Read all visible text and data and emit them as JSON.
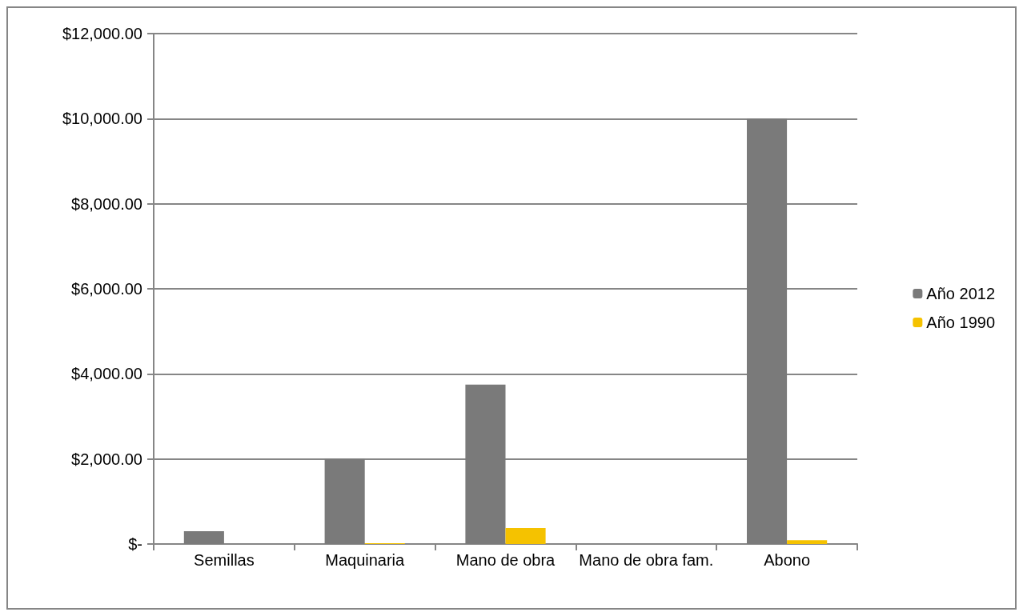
{
  "chart_data": {
    "type": "bar",
    "categories": [
      "Semillas",
      "Maquinaria",
      "Mano de obra",
      "Mano de obra fam.",
      "Abono"
    ],
    "series": [
      {
        "name": "Año 2012",
        "color": "#7a7a7a",
        "values": [
          300,
          2000,
          3750,
          0,
          10000
        ]
      },
      {
        "name": "Año 1990",
        "color": "#f5c200",
        "values": [
          0,
          20,
          375,
          0,
          90
        ]
      }
    ],
    "ylim": [
      0,
      12000
    ],
    "yticks": [
      {
        "value": 0,
        "label": "$-"
      },
      {
        "value": 2000,
        "label": "$2,000.00"
      },
      {
        "value": 4000,
        "label": "$4,000.00"
      },
      {
        "value": 6000,
        "label": "$6,000.00"
      },
      {
        "value": 8000,
        "label": "$8,000.00"
      },
      {
        "value": 10000,
        "label": "$10,000.00"
      },
      {
        "value": 12000,
        "label": "$12,000.00"
      }
    ],
    "grid": "y",
    "legend": "right"
  }
}
